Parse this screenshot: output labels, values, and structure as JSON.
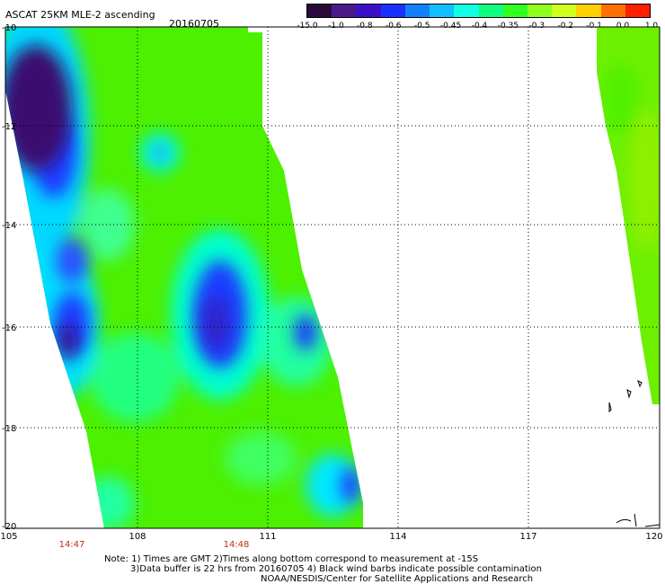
{
  "header": {
    "title": "ASCAT 25KM MLE-2 ascending",
    "date": "20160705"
  },
  "colorbar": {
    "labels": [
      "-15.0",
      "-1.0",
      "-0.8",
      "-0.6",
      "-0.5",
      "-0.45",
      "-0.4",
      "-0.35",
      "-0.3",
      "-0.2",
      "-0.1",
      "0.0",
      "1.0"
    ],
    "colors": [
      "#2a0a3a",
      "#4a1a8a",
      "#3a10c8",
      "#1a30ff",
      "#1080ff",
      "#10c0ff",
      "#10ffe0",
      "#10ff80",
      "#30ff20",
      "#90ff20",
      "#d0ff20",
      "#ffd000",
      "#ff7000",
      "#ff2000"
    ]
  },
  "map": {
    "lat_labels": [
      "-10",
      "-12",
      "-14",
      "-16",
      "-18",
      "-20"
    ],
    "lon_labels": [
      "105",
      "108",
      "111",
      "114",
      "117",
      "120"
    ],
    "times": [
      "14:47",
      "14:48"
    ]
  },
  "notes": {
    "line1": "Note: 1) Times are GMT 2)Times along bottom correspond to measurement at -15S",
    "line2": "3)Data buffer is 22 hrs from 20160705 4) Black wind barbs indicate possible contamination",
    "line3": "NOAA/NESDIS/Center for Satellite Applications and Research"
  }
}
